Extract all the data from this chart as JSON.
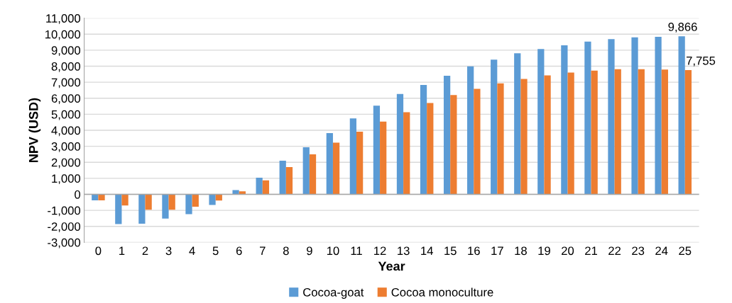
{
  "chart_data": {
    "type": "bar",
    "xlabel": "Year",
    "ylabel": "NPV (USD)",
    "categories": [
      "0",
      "1",
      "2",
      "3",
      "4",
      "5",
      "6",
      "7",
      "8",
      "9",
      "10",
      "11",
      "12",
      "13",
      "14",
      "15",
      "16",
      "17",
      "18",
      "19",
      "20",
      "21",
      "22",
      "23",
      "24",
      "25"
    ],
    "series": [
      {
        "name": "Cocoa-goat",
        "color": "#5b9bd5",
        "values": [
          -370,
          -1860,
          -1830,
          -1510,
          -1240,
          -660,
          270,
          1040,
          2100,
          2940,
          3830,
          4740,
          5540,
          6270,
          6830,
          7410,
          7990,
          8410,
          8810,
          9070,
          9310,
          9540,
          9690,
          9800,
          9840,
          9866
        ],
        "value_labels": [
          null,
          null,
          null,
          null,
          null,
          null,
          null,
          null,
          null,
          null,
          null,
          null,
          null,
          null,
          null,
          null,
          null,
          null,
          null,
          null,
          null,
          null,
          null,
          null,
          null,
          "9,866"
        ]
      },
      {
        "name": "Cocoa monoculture",
        "color": "#ed7d31",
        "values": [
          -370,
          -690,
          -960,
          -960,
          -770,
          -390,
          190,
          870,
          1700,
          2500,
          3230,
          3910,
          4540,
          5130,
          5700,
          6200,
          6590,
          6930,
          7210,
          7430,
          7600,
          7730,
          7810,
          7810,
          7790,
          7755
        ],
        "value_labels": [
          null,
          null,
          null,
          null,
          null,
          null,
          null,
          null,
          null,
          null,
          null,
          null,
          null,
          null,
          null,
          null,
          null,
          null,
          null,
          null,
          null,
          null,
          null,
          null,
          null,
          "7,755"
        ]
      }
    ],
    "ylim": [
      -3000,
      11000
    ],
    "yticks": [
      {
        "value": -3000,
        "label": "-3,000"
      },
      {
        "value": -2000,
        "label": "-2,000"
      },
      {
        "value": -1000,
        "label": "-1,000"
      },
      0,
      {
        "value": 1000,
        "label": "1,000"
      },
      {
        "value": 2000,
        "label": "2,000"
      },
      {
        "value": 3000,
        "label": "3,000"
      },
      {
        "value": 4000,
        "label": "4,000"
      },
      {
        "value": 5000,
        "label": "5,000"
      },
      {
        "value": 6000,
        "label": "6,000"
      },
      {
        "value": 7000,
        "label": "7,000"
      },
      {
        "value": 8000,
        "label": "8,000"
      },
      {
        "value": 9000,
        "label": "9,000"
      },
      {
        "value": 10000,
        "label": "10,000"
      },
      {
        "value": 11000,
        "label": "11,000"
      }
    ],
    "grid": "y",
    "legend": "bottom"
  }
}
